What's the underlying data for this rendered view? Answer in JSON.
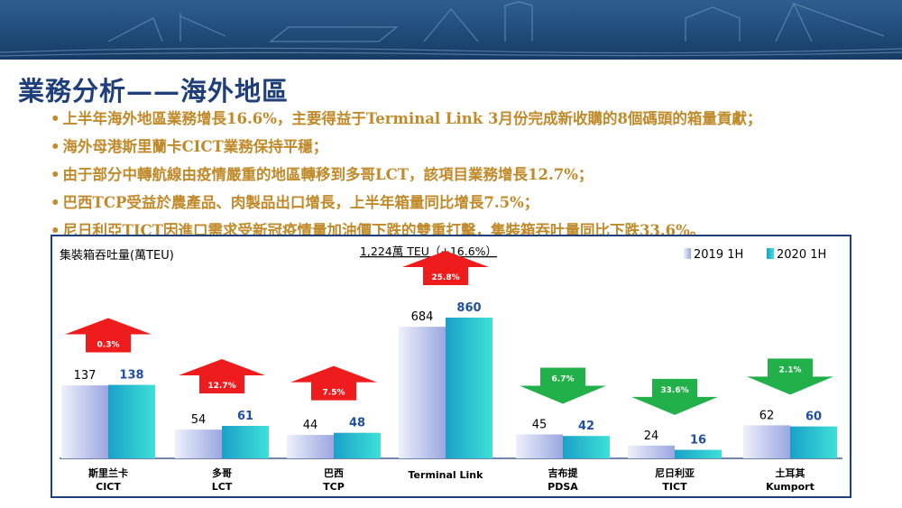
{
  "page": {
    "title": "業務分析——海外地區",
    "bullets": [
      "上半年海外地區業務增長16.6%，主要得益于Terminal Link 3月份完成新收購的8個碼頭的箱量貢獻；",
      "海外母港斯里蘭卡CICT業務保持平穩；",
      "由于部分中轉航線由疫情嚴重的地區轉移到多哥LCT，該項目業務增長12.7%；",
      "巴西TCP受益於農產品、肉製品出口增長，上半年箱量同比增長7.5%；",
      "尼日利亞TICT因進口需求受新冠疫情量加油價下跌的雙重打擊，集裝箱吞吐量同比下跌33.6%。"
    ]
  },
  "chart_data": {
    "type": "bar",
    "title": "集裝箱吞吐量(萬TEU)",
    "subtitle": "1,224萬 TEU（+16.6%）",
    "categories": [
      {
        "name": "斯里兰卡",
        "code": "CICT"
      },
      {
        "name": "多哥",
        "code": "LCT"
      },
      {
        "name": "巴西",
        "code": "TCP"
      },
      {
        "name": "",
        "code": "Terminal Link"
      },
      {
        "name": "吉布提",
        "code": "PDSA"
      },
      {
        "name": "尼日利亚",
        "code": "TICT"
      },
      {
        "name": "土耳其",
        "code": "Kumport"
      }
    ],
    "series": [
      {
        "name": "2019 1H",
        "values": [
          137,
          54,
          44,
          684,
          45,
          24,
          62
        ],
        "label_color": "#000000"
      },
      {
        "name": "2020 1H",
        "values": [
          138,
          61,
          48,
          860,
          42,
          16,
          60
        ],
        "label_color": "#1f4fa0"
      }
    ],
    "changes": [
      {
        "label": "0.3%",
        "direction": "up"
      },
      {
        "label": "12.7%",
        "direction": "up"
      },
      {
        "label": "7.5%",
        "direction": "up"
      },
      {
        "label": "25.8%",
        "direction": "up"
      },
      {
        "label": "6.7%",
        "direction": "down"
      },
      {
        "label": "33.6%",
        "direction": "down"
      },
      {
        "label": "2.1%",
        "direction": "down"
      }
    ],
    "legend_position": "top-right",
    "colors": {
      "up_arrow": "#ee1c1c",
      "down_arrow": "#22b04a",
      "bar_2019": "#b8c0ea",
      "bar_2020": "#1fb8cc",
      "frame": "#1f3f7a"
    }
  }
}
